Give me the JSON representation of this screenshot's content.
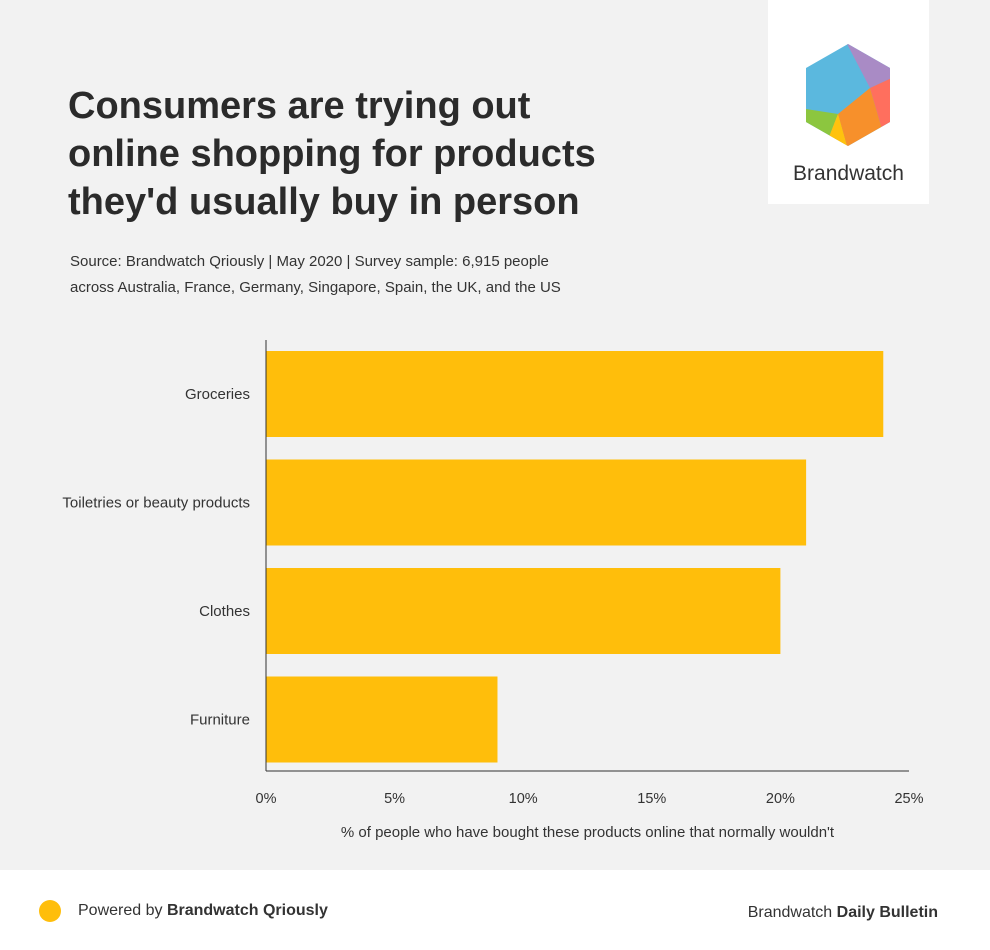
{
  "title_lines": [
    "Consumers are trying out",
    "online shopping for products",
    "they'd usually buy in person"
  ],
  "source_lines": [
    "Source: Brandwatch Qriously | May 2020 | Survey sample: 6,915 people",
    "across Australia, France, Germany, Singapore, Spain, the UK, and the US"
  ],
  "logo": {
    "text": "Brandwatch",
    "icon": "brandwatch-hexagon-icon"
  },
  "footer": {
    "powered_prefix": "Powered by",
    "powered_brand": "Brandwatch Qriously",
    "bulletin_prefix": "Brandwatch",
    "bulletin_bold": "Daily Bulletin"
  },
  "colors": {
    "bar": "#FFBE0B",
    "background": "#F2F2F2",
    "axis": "#333333"
  },
  "chart_data": {
    "type": "bar",
    "orientation": "horizontal",
    "categories": [
      "Groceries",
      "Toiletries or beauty products",
      "Clothes",
      "Furniture"
    ],
    "values": [
      24,
      21,
      20,
      9
    ],
    "xlim": [
      0,
      25
    ],
    "xticks": [
      0,
      5,
      10,
      15,
      20,
      25
    ],
    "tick_labels": [
      "0%",
      "5%",
      "10%",
      "15%",
      "20%",
      "25%"
    ],
    "xlabel": "% of people who have bought these products online that normally wouldn't",
    "ylabel": "",
    "grid": false
  }
}
